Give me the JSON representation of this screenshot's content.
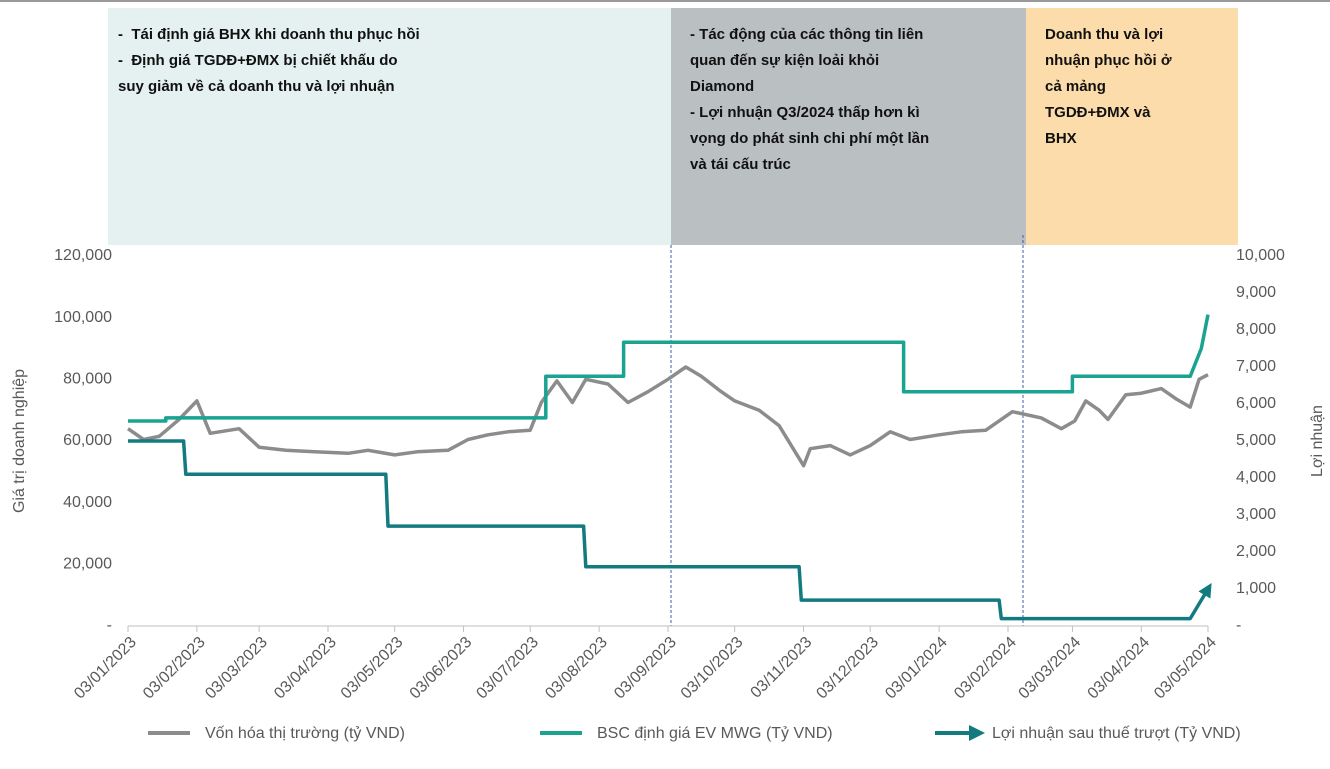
{
  "chart_data": {
    "type": "line",
    "annotations": [
      {
        "lines": [
          "-  Tái định giá BHX khi doanh thu phục hồi",
          "-  Định giá TGDĐ+ĐMX bị chiết khấu do",
          "suy giảm về cả doanh thu và lợi nhuận"
        ]
      },
      {
        "lines": [
          "- Tác động của các thông tin liên",
          "quan đến sự kiện loải khỏi",
          "Diamond",
          "- Lợi nhuận Q3/2024 thấp hơn kì",
          "vọng do phát sinh chi phí một lần",
          "và tái cấu trúc"
        ]
      },
      {
        "lines": [
          "Doanh thu và lợi",
          "nhuận phục hồi ở",
          "cả mảng",
          "TGDĐ+ĐMX và",
          "BHX"
        ]
      }
    ],
    "ylabel": "Giá trị doanh nghiệp",
    "y2label": "Lợi nhuận",
    "xlim": [
      "03/01/2023",
      "03/05/2024"
    ],
    "xticks": [
      "03/01/2023",
      "03/02/2023",
      "03/03/2023",
      "03/04/2023",
      "03/05/2023",
      "03/06/2023",
      "03/07/2023",
      "03/08/2023",
      "03/09/2023",
      "03/10/2023",
      "03/11/2023",
      "03/12/2023",
      "03/01/2024",
      "03/02/2024",
      "03/03/2024",
      "03/04/2024",
      "03/05/2024"
    ],
    "ylim": [
      0,
      120000
    ],
    "yticks": [
      {
        "value": 0,
        "label": "-"
      },
      {
        "value": 20000,
        "label": "20,000"
      },
      {
        "value": 40000,
        "label": "40,000"
      },
      {
        "value": 60000,
        "label": "60,000"
      },
      {
        "value": 80000,
        "label": "80,000"
      },
      {
        "value": 100000,
        "label": "100,000"
      },
      {
        "value": 120000,
        "label": "120,000"
      }
    ],
    "y2lim": [
      0,
      10000
    ],
    "y2ticks": [
      {
        "value": 0,
        "label": "-"
      },
      {
        "value": 1000,
        "label": "1,000"
      },
      {
        "value": 2000,
        "label": "2,000"
      },
      {
        "value": 3000,
        "label": "3,000"
      },
      {
        "value": 4000,
        "label": "4,000"
      },
      {
        "value": 5000,
        "label": "5,000"
      },
      {
        "value": 6000,
        "label": "6,000"
      },
      {
        "value": 7000,
        "label": "7,000"
      },
      {
        "value": 8000,
        "label": "8,000"
      },
      {
        "value": 9000,
        "label": "9,000"
      },
      {
        "value": 10000,
        "label": "10,000"
      }
    ],
    "series": [
      {
        "name": "Vốn hóa thị trường (tỷ VND)",
        "color": "#8c8c8c",
        "x": [
          "03/01/2023",
          "10/01/2023",
          "17/01/2023",
          "26/01/2023",
          "03/02/2023",
          "09/02/2023",
          "22/02/2023",
          "03/03/2023",
          "15/03/2023",
          "28/03/2023",
          "12/04/2023",
          "21/04/2023",
          "03/05/2023",
          "13/05/2023",
          "27/05/2023",
          "05/06/2023",
          "14/06/2023",
          "23/06/2023",
          "03/07/2023",
          "08/07/2023",
          "15/07/2023",
          "22/07/2023",
          "28/07/2023",
          "07/08/2023",
          "16/08/2023",
          "25/08/2023",
          "03/09/2023",
          "11/09/2023",
          "18/09/2023",
          "27/09/2023",
          "03/10/2023",
          "14/10/2023",
          "23/10/2023",
          "03/11/2023",
          "06/11/2023",
          "15/11/2023",
          "24/11/2023",
          "03/12/2023",
          "12/12/2023",
          "21/12/2023",
          "03/01/2024",
          "13/01/2024",
          "24/01/2024",
          "05/02/2024",
          "18/02/2024",
          "27/02/2024",
          "04/03/2024",
          "09/03/2024",
          "15/03/2024",
          "19/03/2024",
          "27/03/2024",
          "03/04/2024",
          "12/04/2024",
          "19/04/2024",
          "25/04/2024",
          "29/04/2024",
          "03/05/2024"
        ],
        "values": [
          64000,
          60500,
          61500,
          67000,
          73000,
          62500,
          64000,
          58000,
          57000,
          56500,
          56000,
          57000,
          55500,
          56500,
          57000,
          60500,
          62000,
          63000,
          63500,
          72500,
          79500,
          72500,
          80000,
          78500,
          72500,
          76000,
          80000,
          84000,
          81000,
          76000,
          73000,
          70000,
          65000,
          52000,
          57500,
          58500,
          55500,
          58500,
          63000,
          60500,
          62000,
          63000,
          63500,
          69500,
          67500,
          64000,
          66500,
          73000,
          70000,
          67000,
          75000,
          75500,
          77000,
          73500,
          71000,
          80000,
          81500
        ]
      },
      {
        "name": "BSC định giá EV MWG (Tỷ VND)",
        "color": "#1aa391",
        "x": [
          "03/01/2023",
          "20/01/2023",
          "20/01/2023",
          "10/07/2023",
          "10/07/2023",
          "14/08/2023",
          "14/08/2023",
          "18/12/2023",
          "18/12/2023",
          "03/03/2024",
          "03/03/2024",
          "25/04/2024",
          "30/04/2024",
          "03/05/2024"
        ],
        "values": [
          66500,
          66500,
          67500,
          67500,
          81000,
          81000,
          92000,
          92000,
          76000,
          76000,
          81000,
          81000,
          90000,
          101000
        ]
      },
      {
        "name": "Lợi nhuận sau thuế trượt (Tỷ VND)",
        "color": "#137a80",
        "axis": "y2",
        "arrow": true,
        "x": [
          "03/01/2023",
          "28/01/2023",
          "29/01/2023",
          "29/04/2023",
          "30/04/2023",
          "27/07/2023",
          "28/07/2023",
          "01/11/2023",
          "02/11/2023",
          "30/01/2024",
          "31/01/2024",
          "25/04/2024",
          "03/05/2024"
        ],
        "values": [
          5000,
          5000,
          4100,
          4100,
          2700,
          2700,
          1600,
          1600,
          700,
          700,
          200,
          200,
          1000
        ]
      }
    ]
  }
}
